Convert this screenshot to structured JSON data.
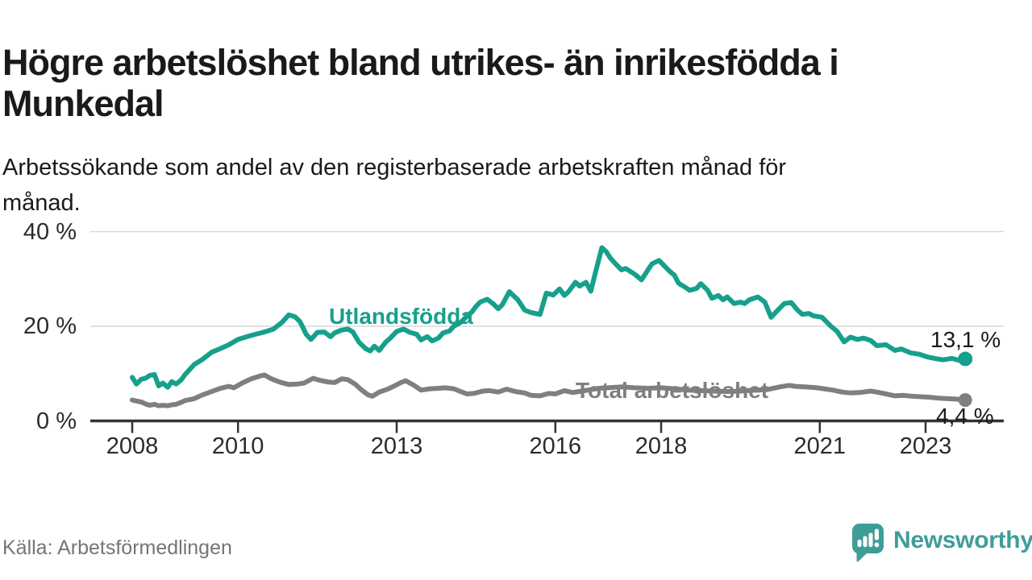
{
  "page": {
    "title": "Högre arbetslöshet bland utrikes- än inrikesfödda i\nMunkedal",
    "subtitle": "Arbetssökande som andel av den registerbaserade arbetskraften månad för\nmånad.",
    "source": "Källa: Arbetsförmedlingen",
    "logo_text": "Newsworthy"
  },
  "colors": {
    "teal_line": "#16a08c",
    "gray_line": "#7f7f7f",
    "grid": "#d9d9d9",
    "axis": "#333333",
    "text_dark": "#1a1a1a",
    "text_muted": "#757575",
    "logo_teal": "#3f9d98"
  },
  "chart_data": {
    "type": "line",
    "unit": "%",
    "grid": "horizontal",
    "x_axis": {
      "ticks": [
        2008,
        2010,
        2013,
        2016,
        2018,
        2021,
        2023
      ],
      "range": [
        2008,
        2023.83
      ]
    },
    "y_axis": {
      "ticks": [
        0,
        20,
        40
      ],
      "range": [
        0,
        43
      ],
      "tick_suffix": " %"
    },
    "series": [
      {
        "name": "Utlandsfödda",
        "color": "#16a08c",
        "end_label": "13,1 %",
        "end_value": 13.1,
        "points": [
          [
            2008.0,
            9.2
          ],
          [
            2008.08,
            7.8
          ],
          [
            2008.17,
            8.8
          ],
          [
            2008.25,
            9.0
          ],
          [
            2008.33,
            9.6
          ],
          [
            2008.42,
            9.8
          ],
          [
            2008.5,
            7.4
          ],
          [
            2008.58,
            8.0
          ],
          [
            2008.67,
            7.1
          ],
          [
            2008.75,
            8.3
          ],
          [
            2008.83,
            7.8
          ],
          [
            2008.92,
            8.6
          ],
          [
            2009.0,
            9.8
          ],
          [
            2009.17,
            11.9
          ],
          [
            2009.33,
            13.0
          ],
          [
            2009.5,
            14.5
          ],
          [
            2009.67,
            15.3
          ],
          [
            2009.83,
            16.1
          ],
          [
            2010.0,
            17.2
          ],
          [
            2010.17,
            17.8
          ],
          [
            2010.33,
            18.3
          ],
          [
            2010.5,
            18.8
          ],
          [
            2010.67,
            19.4
          ],
          [
            2010.83,
            20.8
          ],
          [
            2010.96,
            22.4
          ],
          [
            2011.08,
            22.0
          ],
          [
            2011.17,
            21.0
          ],
          [
            2011.29,
            18.3
          ],
          [
            2011.38,
            17.2
          ],
          [
            2011.5,
            18.7
          ],
          [
            2011.63,
            18.8
          ],
          [
            2011.75,
            17.8
          ],
          [
            2011.83,
            18.6
          ],
          [
            2011.96,
            19.2
          ],
          [
            2012.08,
            19.4
          ],
          [
            2012.17,
            18.8
          ],
          [
            2012.29,
            16.6
          ],
          [
            2012.42,
            15.2
          ],
          [
            2012.5,
            14.8
          ],
          [
            2012.58,
            15.8
          ],
          [
            2012.67,
            14.9
          ],
          [
            2012.79,
            16.6
          ],
          [
            2012.88,
            17.5
          ],
          [
            2013.0,
            18.9
          ],
          [
            2013.13,
            19.4
          ],
          [
            2013.25,
            18.7
          ],
          [
            2013.38,
            18.3
          ],
          [
            2013.46,
            17.1
          ],
          [
            2013.58,
            17.8
          ],
          [
            2013.67,
            16.9
          ],
          [
            2013.79,
            17.5
          ],
          [
            2013.88,
            18.6
          ],
          [
            2014.0,
            19.0
          ],
          [
            2014.08,
            20.0
          ],
          [
            2014.21,
            20.8
          ],
          [
            2014.29,
            21.7
          ],
          [
            2014.42,
            23.0
          ],
          [
            2014.5,
            24.2
          ],
          [
            2014.58,
            25.1
          ],
          [
            2014.71,
            25.7
          ],
          [
            2014.83,
            24.7
          ],
          [
            2014.92,
            23.7
          ],
          [
            2015.0,
            24.6
          ],
          [
            2015.13,
            27.3
          ],
          [
            2015.29,
            25.6
          ],
          [
            2015.42,
            23.4
          ],
          [
            2015.54,
            22.9
          ],
          [
            2015.71,
            22.5
          ],
          [
            2015.83,
            27.0
          ],
          [
            2015.96,
            26.6
          ],
          [
            2016.08,
            27.9
          ],
          [
            2016.17,
            26.5
          ],
          [
            2016.25,
            27.3
          ],
          [
            2016.38,
            29.3
          ],
          [
            2016.46,
            28.5
          ],
          [
            2016.58,
            29.3
          ],
          [
            2016.67,
            27.4
          ],
          [
            2016.75,
            31.0
          ],
          [
            2016.88,
            36.6
          ],
          [
            2016.96,
            35.8
          ],
          [
            2017.04,
            34.4
          ],
          [
            2017.13,
            33.3
          ],
          [
            2017.25,
            31.9
          ],
          [
            2017.33,
            32.2
          ],
          [
            2017.5,
            31.0
          ],
          [
            2017.63,
            29.8
          ],
          [
            2017.75,
            31.9
          ],
          [
            2017.83,
            33.2
          ],
          [
            2017.96,
            33.9
          ],
          [
            2018.04,
            33.0
          ],
          [
            2018.17,
            31.5
          ],
          [
            2018.25,
            30.8
          ],
          [
            2018.33,
            29.1
          ],
          [
            2018.46,
            28.2
          ],
          [
            2018.54,
            27.6
          ],
          [
            2018.67,
            28.0
          ],
          [
            2018.75,
            29.0
          ],
          [
            2018.88,
            27.6
          ],
          [
            2018.96,
            25.9
          ],
          [
            2019.08,
            26.5
          ],
          [
            2019.17,
            25.6
          ],
          [
            2019.25,
            26.2
          ],
          [
            2019.38,
            24.8
          ],
          [
            2019.5,
            25.1
          ],
          [
            2019.58,
            24.8
          ],
          [
            2019.67,
            25.6
          ],
          [
            2019.83,
            26.2
          ],
          [
            2019.96,
            25.1
          ],
          [
            2020.08,
            21.9
          ],
          [
            2020.17,
            23.0
          ],
          [
            2020.33,
            24.8
          ],
          [
            2020.46,
            25.0
          ],
          [
            2020.58,
            23.4
          ],
          [
            2020.67,
            22.5
          ],
          [
            2020.79,
            22.7
          ],
          [
            2020.88,
            22.2
          ],
          [
            2021.04,
            21.9
          ],
          [
            2021.21,
            20.0
          ],
          [
            2021.33,
            18.9
          ],
          [
            2021.46,
            16.7
          ],
          [
            2021.58,
            17.7
          ],
          [
            2021.71,
            17.2
          ],
          [
            2021.83,
            17.5
          ],
          [
            2021.96,
            17.0
          ],
          [
            2022.08,
            15.9
          ],
          [
            2022.25,
            16.1
          ],
          [
            2022.42,
            14.9
          ],
          [
            2022.54,
            15.2
          ],
          [
            2022.71,
            14.4
          ],
          [
            2022.88,
            14.1
          ],
          [
            2023.04,
            13.5
          ],
          [
            2023.17,
            13.2
          ],
          [
            2023.33,
            12.9
          ],
          [
            2023.5,
            13.2
          ],
          [
            2023.63,
            12.8
          ],
          [
            2023.75,
            13.1
          ]
        ]
      },
      {
        "name": "Total arbetslöshet",
        "color": "#7f7f7f",
        "end_label": "4,4 %",
        "end_value": 4.4,
        "points": [
          [
            2008.0,
            4.4
          ],
          [
            2008.08,
            4.2
          ],
          [
            2008.17,
            4.0
          ],
          [
            2008.25,
            3.6
          ],
          [
            2008.33,
            3.3
          ],
          [
            2008.42,
            3.5
          ],
          [
            2008.5,
            3.2
          ],
          [
            2008.58,
            3.3
          ],
          [
            2008.67,
            3.2
          ],
          [
            2008.75,
            3.4
          ],
          [
            2008.83,
            3.5
          ],
          [
            2008.92,
            3.9
          ],
          [
            2009.0,
            4.3
          ],
          [
            2009.17,
            4.7
          ],
          [
            2009.33,
            5.5
          ],
          [
            2009.5,
            6.2
          ],
          [
            2009.67,
            6.9
          ],
          [
            2009.83,
            7.3
          ],
          [
            2009.92,
            7.0
          ],
          [
            2010.08,
            8.0
          ],
          [
            2010.25,
            8.9
          ],
          [
            2010.42,
            9.5
          ],
          [
            2010.5,
            9.7
          ],
          [
            2010.63,
            8.9
          ],
          [
            2010.79,
            8.2
          ],
          [
            2010.96,
            7.7
          ],
          [
            2011.13,
            7.8
          ],
          [
            2011.25,
            8.0
          ],
          [
            2011.42,
            9.0
          ],
          [
            2011.54,
            8.6
          ],
          [
            2011.71,
            8.2
          ],
          [
            2011.83,
            8.1
          ],
          [
            2011.96,
            8.9
          ],
          [
            2012.08,
            8.7
          ],
          [
            2012.21,
            7.8
          ],
          [
            2012.33,
            6.6
          ],
          [
            2012.46,
            5.5
          ],
          [
            2012.54,
            5.2
          ],
          [
            2012.67,
            6.1
          ],
          [
            2012.83,
            6.7
          ],
          [
            2012.96,
            7.4
          ],
          [
            2013.08,
            8.1
          ],
          [
            2013.17,
            8.5
          ],
          [
            2013.33,
            7.5
          ],
          [
            2013.46,
            6.5
          ],
          [
            2013.63,
            6.8
          ],
          [
            2013.79,
            6.9
          ],
          [
            2013.92,
            7.0
          ],
          [
            2014.08,
            6.8
          ],
          [
            2014.21,
            6.2
          ],
          [
            2014.33,
            5.7
          ],
          [
            2014.46,
            5.8
          ],
          [
            2014.63,
            6.3
          ],
          [
            2014.75,
            6.4
          ],
          [
            2014.92,
            6.1
          ],
          [
            2015.08,
            6.7
          ],
          [
            2015.25,
            6.2
          ],
          [
            2015.42,
            5.9
          ],
          [
            2015.54,
            5.4
          ],
          [
            2015.71,
            5.3
          ],
          [
            2015.88,
            5.8
          ],
          [
            2016.0,
            5.7
          ],
          [
            2016.17,
            6.4
          ],
          [
            2016.33,
            6.0
          ],
          [
            2016.5,
            6.3
          ],
          [
            2016.67,
            6.6
          ],
          [
            2016.83,
            6.9
          ],
          [
            2017.0,
            7.0
          ],
          [
            2017.25,
            7.2
          ],
          [
            2017.5,
            7.0
          ],
          [
            2017.75,
            6.9
          ],
          [
            2018.0,
            7.0
          ],
          [
            2018.25,
            6.8
          ],
          [
            2018.5,
            6.5
          ],
          [
            2018.75,
            6.4
          ],
          [
            2019.0,
            6.3
          ],
          [
            2019.25,
            6.2
          ],
          [
            2019.5,
            6.3
          ],
          [
            2019.75,
            6.5
          ],
          [
            2020.0,
            6.6
          ],
          [
            2020.25,
            7.2
          ],
          [
            2020.42,
            7.5
          ],
          [
            2020.54,
            7.3
          ],
          [
            2020.71,
            7.2
          ],
          [
            2020.83,
            7.1
          ],
          [
            2020.94,
            7.0
          ],
          [
            2021.08,
            6.8
          ],
          [
            2021.25,
            6.5
          ],
          [
            2021.42,
            6.1
          ],
          [
            2021.58,
            5.9
          ],
          [
            2021.75,
            6.0
          ],
          [
            2021.96,
            6.3
          ],
          [
            2022.08,
            6.1
          ],
          [
            2022.25,
            5.7
          ],
          [
            2022.42,
            5.3
          ],
          [
            2022.58,
            5.4
          ],
          [
            2022.75,
            5.2
          ],
          [
            2022.92,
            5.1
          ],
          [
            2023.08,
            5.0
          ],
          [
            2023.25,
            4.8
          ],
          [
            2023.42,
            4.7
          ],
          [
            2023.58,
            4.6
          ],
          [
            2023.75,
            4.4
          ]
        ]
      }
    ]
  }
}
